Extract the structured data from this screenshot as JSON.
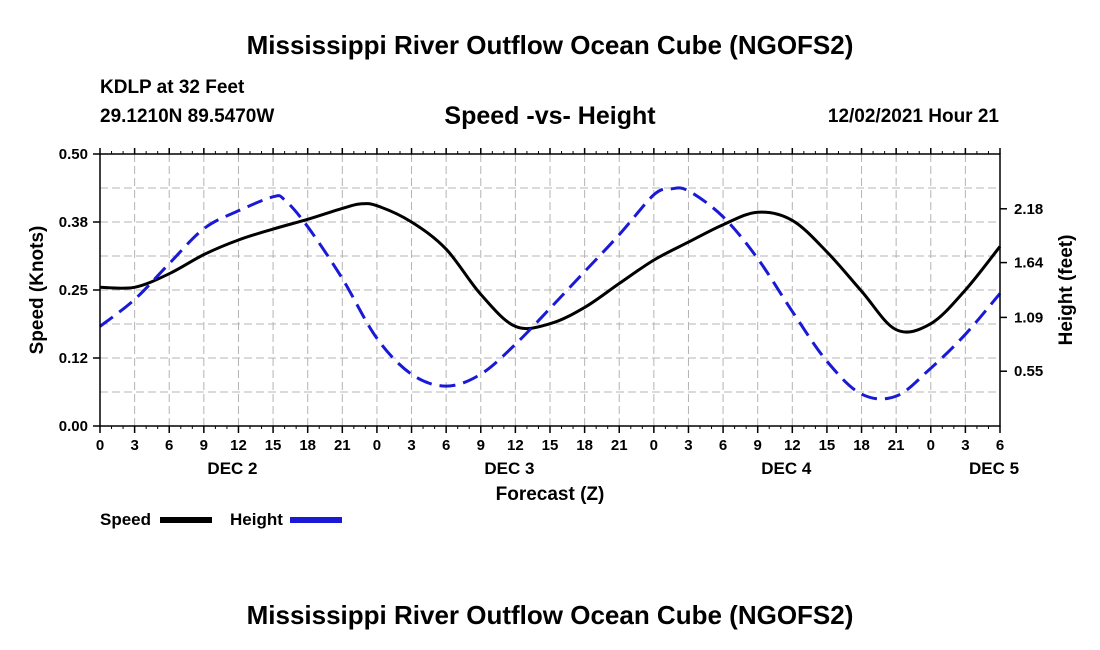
{
  "header": {
    "title": "Mississippi River Outflow Ocean Cube (NGOFS2)",
    "station": "KDLP at 32 Feet",
    "coords": "29.1210N  89.5470W",
    "subtitle": "Speed -vs- Height",
    "timestamp": "12/02/2021 Hour 21",
    "footer_title": "Mississippi River Outflow Ocean Cube (NGOFS2)"
  },
  "legend": {
    "speed_label": "Speed",
    "height_label": "Height"
  },
  "colors": {
    "speed": "#000000",
    "height": "#1a1ad6",
    "grid": "#b4b4b4"
  },
  "chart_data": {
    "type": "line",
    "xlabel": "Forecast (Z)",
    "ylabel": "Speed (Knots)",
    "y2label": "Height (feet)",
    "xlim": [
      0,
      78
    ],
    "x_ticks": [
      0,
      3,
      6,
      9,
      12,
      15,
      18,
      21,
      24,
      27,
      30,
      33,
      36,
      39,
      42,
      45,
      48,
      51,
      54,
      57,
      60,
      63,
      66,
      69,
      72,
      75,
      78
    ],
    "x_tick_labels": [
      "0",
      "3",
      "6",
      "9",
      "12",
      "15",
      "18",
      "21",
      "0",
      "3",
      "6",
      "9",
      "12",
      "15",
      "18",
      "21",
      "0",
      "3",
      "6",
      "9",
      "12",
      "15",
      "18",
      "21",
      "0",
      "3",
      "6"
    ],
    "day_labels": [
      {
        "label": "DEC 2",
        "x": 12
      },
      {
        "label": "DEC 3",
        "x": 36
      },
      {
        "label": "DEC 4",
        "x": 60
      },
      {
        "label": "DEC 5",
        "x": 78
      }
    ],
    "ylim": [
      0,
      0.5
    ],
    "y_ticks": [
      0,
      0.125,
      0.25,
      0.375,
      0.5
    ],
    "y_tick_labels": [
      "0.00",
      "0.12",
      "0.25",
      "0.38",
      "0.50"
    ],
    "y2lim": [
      0,
      2.73
    ],
    "y2_ticks": [
      0.55,
      1.09,
      1.64,
      2.18
    ],
    "y2_tick_labels": [
      "0.55",
      "1.09",
      "1.64",
      "2.18"
    ],
    "series": [
      {
        "name": "Speed",
        "axis": "left",
        "x": [
          0,
          3,
          6,
          9,
          12,
          15,
          18,
          21,
          22.5,
          24,
          27,
          30,
          33,
          36,
          39,
          42,
          45,
          48,
          51,
          54,
          57,
          60,
          63,
          66,
          69,
          72,
          75,
          78
        ],
        "values": [
          0.255,
          0.255,
          0.28,
          0.315,
          0.342,
          0.362,
          0.38,
          0.4,
          0.408,
          0.405,
          0.375,
          0.325,
          0.242,
          0.183,
          0.188,
          0.218,
          0.262,
          0.305,
          0.338,
          0.37,
          0.393,
          0.378,
          0.32,
          0.248,
          0.177,
          0.188,
          0.25,
          0.33
        ]
      },
      {
        "name": "Height",
        "axis": "right",
        "x": [
          0,
          3,
          6,
          9,
          12,
          15,
          16,
          18,
          21,
          24,
          27,
          30,
          33,
          36,
          39,
          42,
          45,
          48,
          49.5,
          51,
          54,
          57,
          60,
          63,
          66,
          69,
          72,
          75,
          78
        ],
        "values": [
          1.0,
          1.27,
          1.63,
          1.98,
          2.16,
          2.3,
          2.27,
          2.0,
          1.48,
          0.88,
          0.52,
          0.4,
          0.52,
          0.82,
          1.18,
          1.55,
          1.92,
          2.32,
          2.38,
          2.36,
          2.1,
          1.68,
          1.15,
          0.65,
          0.32,
          0.3,
          0.58,
          0.92,
          1.33
        ]
      }
    ]
  }
}
